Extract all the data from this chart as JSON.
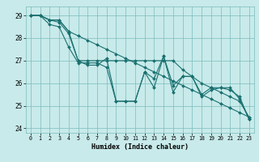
{
  "xlabel": "Humidex (Indice chaleur)",
  "bg_color": "#c8eaea",
  "line_color": "#1a7070",
  "grid_color": "#7bbcbc",
  "xlim": [
    -0.5,
    23.5
  ],
  "ylim": [
    23.8,
    29.4
  ],
  "yticks": [
    24,
    25,
    26,
    27,
    28,
    29
  ],
  "xticks": [
    0,
    1,
    2,
    3,
    4,
    5,
    6,
    7,
    8,
    9,
    10,
    11,
    12,
    13,
    14,
    15,
    16,
    17,
    18,
    19,
    20,
    21,
    22,
    23
  ],
  "lines": [
    [
      29.0,
      29.0,
      28.8,
      28.7,
      28.2,
      27.0,
      26.8,
      26.8,
      27.1,
      25.2,
      25.2,
      25.2,
      26.5,
      26.2,
      27.2,
      25.9,
      26.3,
      26.3,
      25.5,
      25.8,
      25.8,
      25.7,
      25.4,
      24.4
    ],
    [
      29.0,
      29.0,
      28.8,
      28.8,
      28.3,
      27.0,
      27.0,
      27.0,
      27.0,
      27.0,
      27.0,
      27.0,
      27.0,
      27.0,
      27.0,
      27.0,
      26.6,
      26.3,
      26.0,
      25.8,
      25.6,
      25.4,
      25.2,
      24.5
    ],
    [
      29.0,
      29.0,
      28.8,
      28.8,
      28.3,
      28.1,
      27.9,
      27.7,
      27.5,
      27.3,
      27.1,
      26.9,
      26.7,
      26.5,
      26.3,
      26.1,
      25.9,
      25.7,
      25.5,
      25.3,
      25.1,
      24.9,
      24.7,
      24.5
    ],
    [
      29.0,
      29.0,
      28.6,
      28.5,
      27.6,
      26.9,
      26.9,
      26.9,
      26.7,
      25.2,
      25.2,
      25.2,
      26.5,
      25.8,
      27.2,
      25.6,
      26.3,
      26.3,
      25.4,
      25.7,
      25.8,
      25.8,
      25.3,
      24.4
    ]
  ]
}
